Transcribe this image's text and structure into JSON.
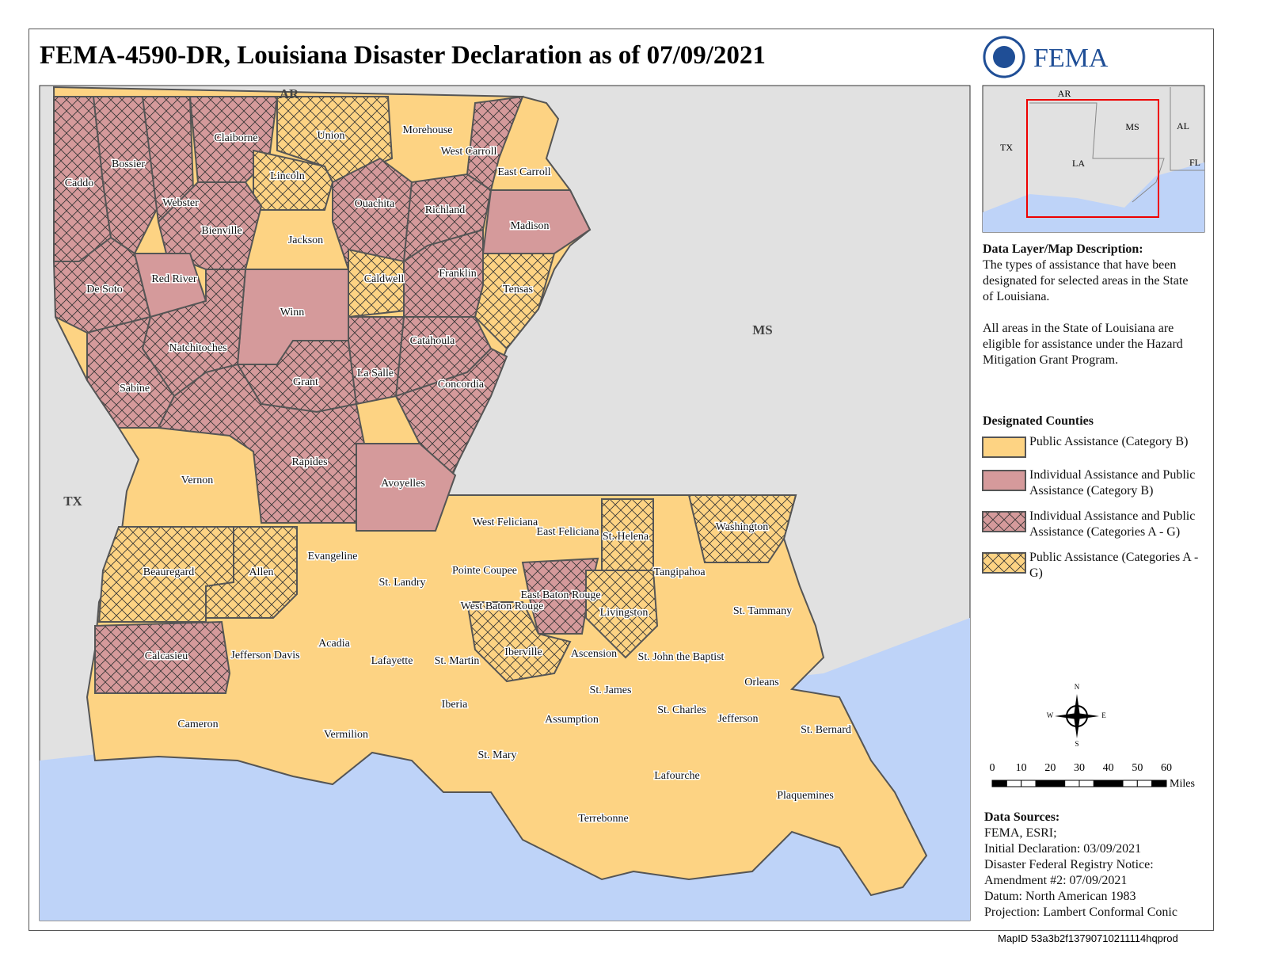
{
  "header": {
    "title": "FEMA-4590-DR, Louisiana Disaster Declaration as of 07/09/2021",
    "agency": "FEMA"
  },
  "map": {
    "neighbors": [
      "AR",
      "MS",
      "TX"
    ],
    "parishes": [
      {
        "name": "Caddo",
        "category": 2
      },
      {
        "name": "Bossier",
        "category": 2
      },
      {
        "name": "Webster",
        "category": 2
      },
      {
        "name": "Claiborne",
        "category": 2
      },
      {
        "name": "Union",
        "category": 3
      },
      {
        "name": "Morehouse",
        "category": 0
      },
      {
        "name": "West Carroll",
        "category": 2
      },
      {
        "name": "East Carroll",
        "category": 0
      },
      {
        "name": "Lincoln",
        "category": 3
      },
      {
        "name": "Ouachita",
        "category": 2
      },
      {
        "name": "Richland",
        "category": 2
      },
      {
        "name": "Bienville",
        "category": 2
      },
      {
        "name": "Jackson",
        "category": 0
      },
      {
        "name": "Madison",
        "category": 1
      },
      {
        "name": "De Soto",
        "category": 2
      },
      {
        "name": "Red River",
        "category": 1
      },
      {
        "name": "Caldwell",
        "category": 3
      },
      {
        "name": "Franklin",
        "category": 2
      },
      {
        "name": "Tensas",
        "category": 3
      },
      {
        "name": "Winn",
        "category": 1
      },
      {
        "name": "Natchitoches",
        "category": 2
      },
      {
        "name": "Catahoula",
        "category": 2
      },
      {
        "name": "Sabine",
        "category": 2
      },
      {
        "name": "Grant",
        "category": 2
      },
      {
        "name": "La Salle",
        "category": 2
      },
      {
        "name": "Concordia",
        "category": 2
      },
      {
        "name": "Rapides",
        "category": 2
      },
      {
        "name": "Vernon",
        "category": 0
      },
      {
        "name": "Avoyelles",
        "category": 1
      },
      {
        "name": "West Feliciana",
        "category": 0
      },
      {
        "name": "East Feliciana",
        "category": 0
      },
      {
        "name": "St. Helena",
        "category": 3
      },
      {
        "name": "Washington",
        "category": 3
      },
      {
        "name": "Evangeline",
        "category": 0
      },
      {
        "name": "Beauregard",
        "category": 3
      },
      {
        "name": "Allen",
        "category": 3
      },
      {
        "name": "St. Landry",
        "category": 0
      },
      {
        "name": "Pointe Coupee",
        "category": 0
      },
      {
        "name": "Tangipahoa",
        "category": 0
      },
      {
        "name": "East Baton Rouge",
        "category": 2
      },
      {
        "name": "West Baton Rouge",
        "category": 0
      },
      {
        "name": "Livingston",
        "category": 3
      },
      {
        "name": "St. Tammany",
        "category": 0
      },
      {
        "name": "Calcasieu",
        "category": 2
      },
      {
        "name": "Jefferson Davis",
        "category": 0
      },
      {
        "name": "Acadia",
        "category": 0
      },
      {
        "name": "Lafayette",
        "category": 0
      },
      {
        "name": "St. Martin",
        "category": 0
      },
      {
        "name": "Iberville",
        "category": 3
      },
      {
        "name": "Ascension",
        "category": 0
      },
      {
        "name": "St. John the Baptist",
        "category": 0
      },
      {
        "name": "Orleans",
        "category": 0
      },
      {
        "name": "St. James",
        "category": 0
      },
      {
        "name": "Iberia",
        "category": 0
      },
      {
        "name": "St. Charles",
        "category": 0
      },
      {
        "name": "Cameron",
        "category": 0
      },
      {
        "name": "Assumption",
        "category": 0
      },
      {
        "name": "Jefferson",
        "category": 0
      },
      {
        "name": "St. Bernard",
        "category": 0
      },
      {
        "name": "Vermilion",
        "category": 0
      },
      {
        "name": "St. Mary",
        "category": 0
      },
      {
        "name": "Lafourche",
        "category": 0
      },
      {
        "name": "Plaquemines",
        "category": 0
      },
      {
        "name": "Terrebonne",
        "category": 0
      }
    ]
  },
  "inset": {
    "labels": [
      "AR",
      "TX",
      "MS",
      "AL",
      "LA",
      "FL"
    ]
  },
  "description": {
    "heading": "Data Layer/Map Description:",
    "paragraphs": [
      "The types of assistance that have been designated for selected areas in the State of Louisiana.",
      "All areas in the State of Louisiana are eligible for assistance under the Hazard Mitigation Grant Program."
    ]
  },
  "legend": {
    "heading": "Designated Counties",
    "items": [
      {
        "label": "Public Assistance (Category B)",
        "color": "#fdd383",
        "hatched": false
      },
      {
        "label": "Individual Assistance and Public Assistance (Category B)",
        "color": "#d59a9b",
        "hatched": false
      },
      {
        "label": "Individual Assistance and Public Assistance (Categories A - G)",
        "color": "#d59a9b",
        "hatched": true
      },
      {
        "label": "Public Assistance (Categories A - G)",
        "color": "#fdd383",
        "hatched": true
      }
    ]
  },
  "compass": {
    "n": "N",
    "e": "E",
    "s": "S",
    "w": "W"
  },
  "scale": {
    "ticks": [
      0,
      10,
      20,
      30,
      40,
      50,
      60
    ],
    "unit": "Miles"
  },
  "sources": {
    "heading": "Data Sources:",
    "lines": [
      "FEMA, ESRI;",
      "Initial Declaration: 03/09/2021",
      "Disaster Federal Registry Notice:",
      "Amendment #2: 07/09/2021",
      "Datum: North American 1983",
      "Projection: Lambert Conformal Conic"
    ]
  },
  "map_id": "MapID 53a3b2f13790710211114hqprod"
}
